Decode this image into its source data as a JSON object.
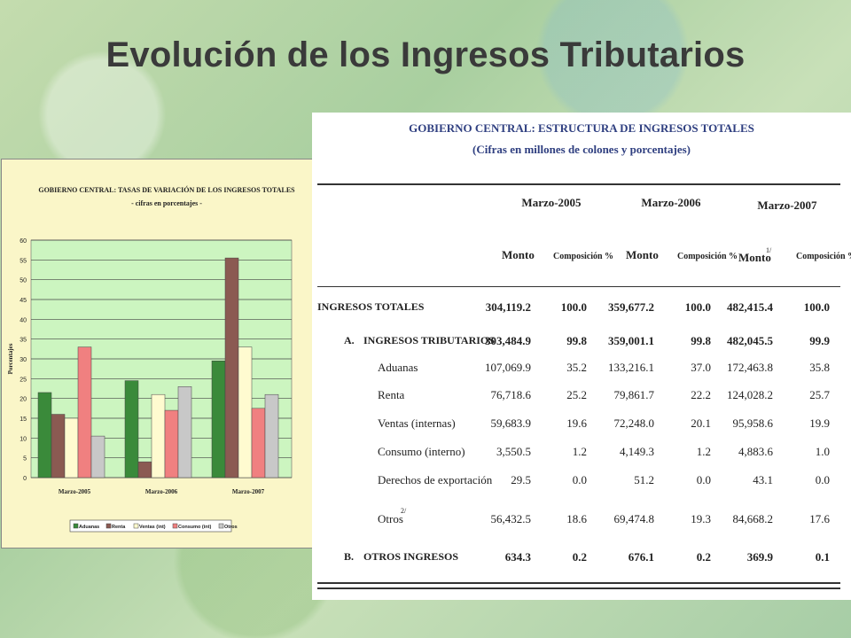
{
  "slide": {
    "title": "Evolución de los Ingresos Tributarios"
  },
  "chart_data": {
    "type": "bar",
    "title": "GOBIERNO CENTRAL: TASAS DE VARIACIÓN DE LOS INGRESOS TOTALES",
    "subtitle": "- cifras en porcentajes -",
    "ylabel": "Porcentajes",
    "xlabel": "",
    "ylim": [
      0,
      60
    ],
    "yticks": [
      0,
      5,
      10,
      15,
      20,
      25,
      30,
      35,
      40,
      45,
      50,
      55,
      60
    ],
    "grid": true,
    "legend_position": "bottom",
    "categories": [
      "Marzo-2005",
      "Marzo-2006",
      "Marzo-2007"
    ],
    "series": [
      {
        "name": "Aduanas",
        "color": "#3a8a3a",
        "values": [
          21.5,
          24.5,
          29.5
        ]
      },
      {
        "name": "Renta",
        "color": "#8b5a52",
        "values": [
          16,
          4,
          55.5
        ]
      },
      {
        "name": "Ventas (int)",
        "color": "#fffbd0",
        "values": [
          15,
          21,
          33
        ]
      },
      {
        "name": "Consumo (int)",
        "color": "#f08080",
        "values": [
          33,
          17,
          17.5
        ]
      },
      {
        "name": "Otros",
        "color": "#c8c8c8",
        "values": [
          10.5,
          23,
          21
        ]
      }
    ]
  },
  "table": {
    "title": "GOBIERNO CENTRAL:  ESTRUCTURA DE INGRESOS TOTALES",
    "subtitle": "(Cifras en millones de colones y porcentajes)",
    "periods": [
      "Marzo-2005",
      "Marzo-2006",
      "Marzo-2007"
    ],
    "col_monto": "Monto",
    "col_comp": "Composición %",
    "note_monto_2007": "1/",
    "rows": [
      {
        "label": "INGRESOS TOTALES",
        "prefix": "",
        "note": "",
        "level": 0,
        "values": [
          "304,119.2",
          "100.0",
          "359,677.2",
          "100.0",
          "482,415.4",
          "100.0"
        ]
      },
      {
        "label": "INGRESOS TRIBUTARIOS",
        "prefix": "A.",
        "note": "",
        "level": 1,
        "values": [
          "303,484.9",
          "99.8",
          "359,001.1",
          "99.8",
          "482,045.5",
          "99.9"
        ]
      },
      {
        "label": "Aduanas",
        "prefix": "",
        "note": "",
        "level": 2,
        "values": [
          "107,069.9",
          "35.2",
          "133,216.1",
          "37.0",
          "172,463.8",
          "35.8"
        ]
      },
      {
        "label": "Renta",
        "prefix": "",
        "note": "",
        "level": 2,
        "values": [
          "76,718.6",
          "25.2",
          "79,861.7",
          "22.2",
          "124,028.2",
          "25.7"
        ]
      },
      {
        "label": "Ventas (internas)",
        "prefix": "",
        "note": "",
        "level": 2,
        "values": [
          "59,683.9",
          "19.6",
          "72,248.0",
          "20.1",
          "95,958.6",
          "19.9"
        ]
      },
      {
        "label": "Consumo (interno)",
        "prefix": "",
        "note": "",
        "level": 2,
        "values": [
          "3,550.5",
          "1.2",
          "4,149.3",
          "1.2",
          "4,883.6",
          "1.0"
        ]
      },
      {
        "label": "Derechos de exportación",
        "prefix": "",
        "note": "",
        "level": 2,
        "values": [
          "29.5",
          "0.0",
          "51.2",
          "0.0",
          "43.1",
          "0.0"
        ]
      },
      {
        "label": "Otros",
        "prefix": "",
        "note": "2/",
        "level": 2,
        "values": [
          "56,432.5",
          "18.6",
          "69,474.8",
          "19.3",
          "84,668.2",
          "17.6"
        ]
      },
      {
        "label": "OTROS INGRESOS",
        "prefix": "B.",
        "note": "",
        "level": 1,
        "values": [
          "634.3",
          "0.2",
          "676.1",
          "0.2",
          "369.9",
          "0.1"
        ]
      }
    ]
  }
}
